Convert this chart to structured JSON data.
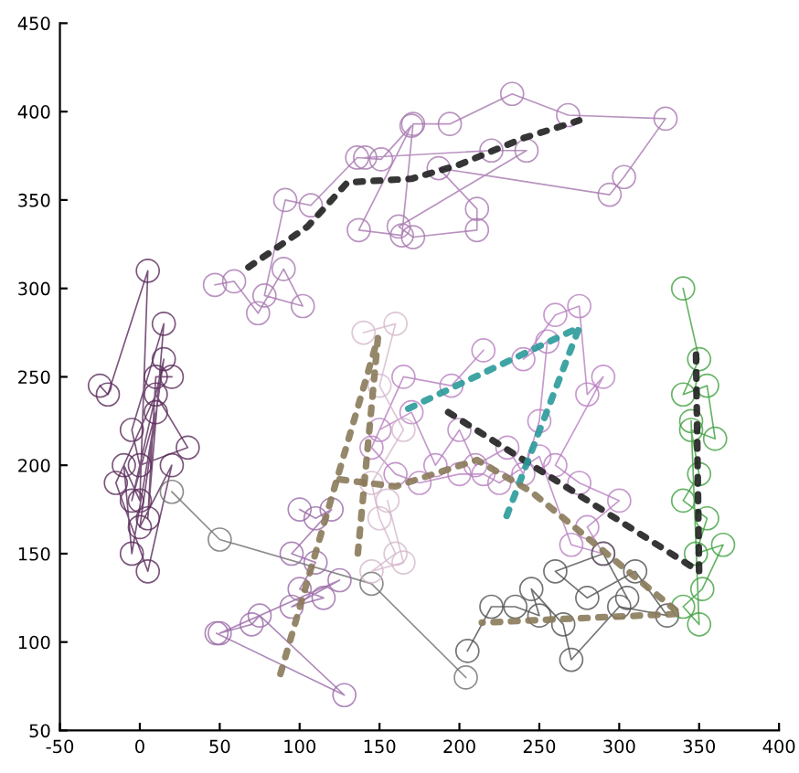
{
  "chart_data": {
    "type": "line",
    "xlim": [
      -50,
      400
    ],
    "ylim": [
      50,
      450
    ],
    "xticks": [
      -50,
      0,
      50,
      100,
      150,
      200,
      250,
      300,
      350,
      400
    ],
    "yticks": [
      50,
      100,
      150,
      200,
      250,
      300,
      350,
      400,
      450
    ],
    "grid": false,
    "legend": false,
    "marker": "circle",
    "line_style": "solid",
    "series": [
      {
        "color": "#5a2a5a",
        "x": [
          -25,
          -20,
          5,
          0,
          -10,
          -5,
          10,
          -5,
          15,
          0,
          20,
          5,
          -15,
          10,
          30,
          0,
          -5,
          15,
          5,
          10,
          20
        ],
        "values": [
          245,
          240,
          310,
          180,
          200,
          150,
          230,
          180,
          260,
          165,
          200,
          140,
          190,
          240,
          210,
          200,
          220,
          280,
          170,
          250,
          250
        ]
      },
      {
        "color": "#707070",
        "x": [
          20,
          50,
          145,
          204
        ],
        "values": [
          185,
          158,
          133,
          80
        ]
      },
      {
        "color": "#a878b0",
        "x": [
          47,
          59,
          74,
          90,
          102,
          78,
          91,
          107,
          136,
          151,
          170,
          137,
          164,
          171,
          194,
          233,
          268,
          329,
          303,
          294,
          187,
          211,
          211,
          171,
          162,
          242,
          220,
          141
        ],
        "values": [
          302,
          304,
          286,
          311,
          290,
          296,
          350,
          347,
          374,
          373,
          392,
          333,
          330,
          393,
          393,
          410,
          398,
          396,
          363,
          353,
          368,
          345,
          333,
          329,
          335,
          378,
          378,
          374
        ]
      },
      {
        "color": "#b880c0",
        "x": [
          150,
          170,
          185,
          200,
          210,
          230,
          240,
          250,
          255,
          240,
          260,
          275,
          280,
          290,
          260,
          275,
          300,
          280,
          290,
          270,
          250,
          225,
          215,
          200,
          175,
          160,
          145,
          165,
          195,
          215
        ],
        "values": [
          220,
          230,
          200,
          220,
          200,
          210,
          195,
          225,
          270,
          260,
          285,
          290,
          240,
          250,
          200,
          190,
          180,
          165,
          150,
          155,
          205,
          190,
          195,
          195,
          190,
          195,
          210,
          250,
          245,
          265
        ]
      },
      {
        "color": "#d4b8cc",
        "x": [
          140,
          160,
          150,
          165,
          145,
          150,
          160,
          145,
          165,
          155
        ],
        "values": [
          275,
          280,
          245,
          220,
          190,
          170,
          150,
          140,
          145,
          180
        ]
      },
      {
        "color": "#9a6aa8",
        "x": [
          100,
          110,
          120,
          95,
          110,
          100,
          115,
          95,
          125,
          50,
          70,
          75,
          128,
          48
        ],
        "values": [
          175,
          170,
          175,
          150,
          145,
          130,
          125,
          120,
          135,
          105,
          110,
          115,
          70,
          105
        ]
      },
      {
        "color": "#505050",
        "x": [
          205,
          220,
          235,
          250,
          245,
          265,
          270,
          300,
          330,
          310,
          280,
          260,
          290,
          305
        ],
        "values": [
          95,
          120,
          120,
          115,
          130,
          110,
          90,
          120,
          115,
          140,
          125,
          140,
          150,
          125
        ]
      },
      {
        "color": "#40a040",
        "x": [
          340,
          350,
          340,
          355,
          360,
          345,
          350,
          340,
          355,
          348,
          365,
          352,
          340,
          350,
          345
        ],
        "values": [
          300,
          260,
          240,
          245,
          215,
          220,
          195,
          180,
          170,
          150,
          155,
          130,
          120,
          110,
          225
        ]
      },
      {
        "color": "#202020",
        "marker": "none",
        "line_style": "dotted",
        "x": [
          68,
          105,
          130,
          170,
          200,
          240,
          275
        ],
        "values": [
          312,
          335,
          360,
          362,
          370,
          385,
          395
        ]
      },
      {
        "color": "#202020",
        "marker": "none",
        "line_style": "dotted",
        "x": [
          193,
          350,
          348
        ],
        "values": [
          230,
          140,
          266
        ]
      },
      {
        "color": "#2a9a9a",
        "marker": "none",
        "line_style": "dotted",
        "x": [
          168,
          275,
          229
        ],
        "values": [
          232,
          278,
          170
        ]
      },
      {
        "color": "#8a7a5a",
        "marker": "none",
        "line_style": "dotted",
        "x": [
          88,
          149,
          136
        ],
        "values": [
          82,
          272,
          146
        ]
      },
      {
        "color": "#8a7a5a",
        "marker": "none",
        "line_style": "dotted",
        "x": [
          125,
          160,
          211,
          245,
          338,
          214
        ],
        "values": [
          192,
          188,
          203,
          185,
          116,
          111
        ]
      }
    ]
  }
}
